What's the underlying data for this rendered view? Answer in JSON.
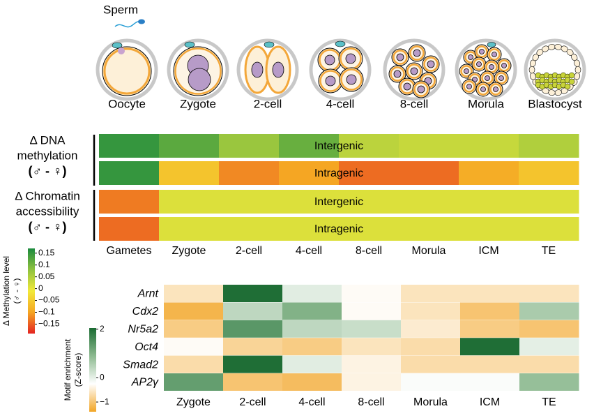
{
  "illustration": {
    "sperm": "Sperm",
    "stages": [
      "Oocyte",
      "Zygote",
      "2-cell",
      "4-cell",
      "8-cell",
      "Morula",
      "Blastocyst"
    ]
  },
  "chart_data": [
    {
      "type": "heatmap",
      "row_groups": [
        {
          "lines": [
            "Δ DNA",
            "methylation"
          ],
          "sex": "(♂ - ♀)",
          "color": "#d7191c"
        },
        {
          "lines": [
            "Δ Chromatin",
            "accessibility"
          ],
          "sex": "(♂ - ♀)",
          "color": "#000000"
        }
      ],
      "rows": [
        "Intergenic",
        "Intragenic",
        "Intergenic",
        "Intragenic"
      ],
      "categories": [
        "Gametes",
        "Zygote",
        "2-cell",
        "4-cell",
        "8-cell",
        "Morula",
        "ICM",
        "TE"
      ],
      "values": [
        [
          0.15,
          0.12,
          0.07,
          0.11,
          0.04,
          0.03,
          0.03,
          0.05
        ],
        [
          0.15,
          -0.06,
          -0.12,
          -0.1,
          -0.14,
          -0.14,
          -0.09,
          -0.06
        ],
        [
          -0.13,
          0.01,
          0.01,
          0.01,
          0.01,
          0.01,
          0.01,
          0.01
        ],
        [
          -0.14,
          0.01,
          0.01,
          0.01,
          0.01,
          0.01,
          0.01,
          0.01
        ]
      ],
      "colorbar": {
        "title": "Δ Methylation level",
        "subtitle": "(♂ - ♀)",
        "clim": [
          -0.19,
          0.17
        ],
        "ticks": [
          0.15,
          0.1,
          0.05,
          0,
          {
            "value": -0.05,
            "label": "−0.05"
          },
          {
            "value": -0.1,
            "label": "−0.1"
          },
          {
            "value": -0.15,
            "label": "−0.15"
          }
        ],
        "colors": [
          "#e42421",
          "#f5a623",
          "#f2e93a",
          "#8fc23f",
          "#1b8a3e"
        ]
      }
    },
    {
      "type": "heatmap",
      "rows": [
        "Arnt",
        "Cdx2",
        "Nr5a2",
        "Oct4",
        "Smad2",
        "AP2γ"
      ],
      "categories": [
        "Zygote",
        "2-cell",
        "4-cell",
        "8-cell",
        "Morula",
        "ICM",
        "TE"
      ],
      "values": [
        [
          -0.6,
          2,
          0.05,
          -0.3,
          -0.6,
          -0.6,
          -0.6
        ],
        [
          -1.2,
          0.4,
          1.0,
          -0.3,
          -0.6,
          -1.0,
          0.6
        ],
        [
          -0.9,
          1.4,
          0.4,
          0.3,
          -0.5,
          -0.9,
          -1.0
        ],
        [
          -0.3,
          -0.8,
          -0.9,
          -0.6,
          -0.7,
          2,
          0.02
        ],
        [
          -0.7,
          2,
          0.05,
          -0.4,
          -0.7,
          -0.7,
          -0.7
        ],
        [
          1.3,
          -1.0,
          -1.1,
          -0.4,
          -0.2,
          -0.2,
          0.8
        ]
      ],
      "colorbar": {
        "title": "Motif enrichment",
        "subtitle": "(Z-score)",
        "clim": [
          -1.4,
          2.05
        ],
        "ticks": [
          2,
          0,
          {
            "value": -1,
            "label": "−1"
          }
        ],
        "colors": [
          "#f2a526",
          "#ffffff",
          "#8cb98f",
          "#1a6b32"
        ]
      }
    }
  ]
}
